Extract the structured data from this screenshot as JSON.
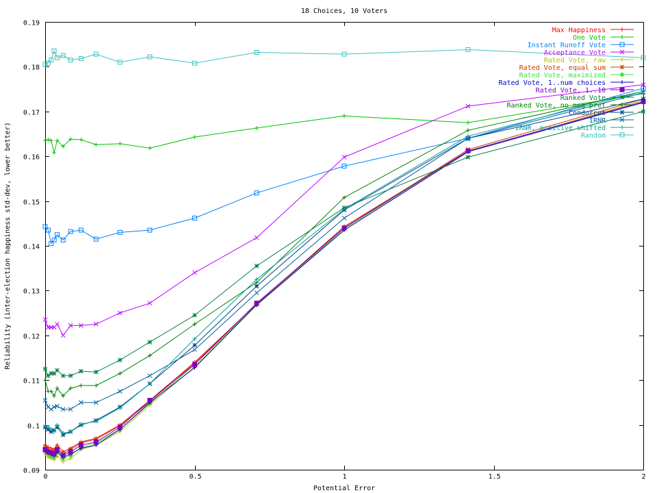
{
  "chart_data": {
    "type": "line",
    "title": "18 Choices, 10 Voters",
    "xlabel": "Potential Error",
    "ylabel": "Reliability (inter-election happiness std-dev, lower better)",
    "xlim": [
      0,
      2
    ],
    "ylim": [
      0.09,
      0.19
    ],
    "xticks": [
      "0",
      "0.5",
      "1",
      "1.5",
      "2"
    ],
    "yticks": [
      "0.09",
      "0.1",
      "0.11",
      "0.12",
      "0.13",
      "0.14",
      "0.15",
      "0.16",
      "0.17",
      "0.18",
      "0.19"
    ],
    "grid": false,
    "legend_position": "top-right",
    "x": [
      0,
      0.01,
      0.02,
      0.03,
      0.04,
      0.06,
      0.085,
      0.12,
      0.17,
      0.25,
      0.35,
      0.5,
      0.707,
      1,
      1.414,
      2
    ],
    "series": [
      {
        "name": "Max Happiness",
        "color": "#ff0000",
        "marker": "plus-dot",
        "values": [
          0.0955,
          0.095,
          0.0948,
          0.0945,
          0.0955,
          0.094,
          0.0948,
          0.0962,
          0.097,
          0.1,
          0.1055,
          0.114,
          0.127,
          0.1443,
          0.1612,
          0.172
        ]
      },
      {
        "name": "One Vote",
        "color": "#00c000",
        "marker": "plus",
        "values": [
          0.1635,
          0.1637,
          0.1635,
          0.1608,
          0.1635,
          0.1622,
          0.1638,
          0.1637,
          0.1626,
          0.1628,
          0.1618,
          0.1643,
          0.1663,
          0.169,
          0.1675,
          0.174
        ]
      },
      {
        "name": "Instant Runoff Vote",
        "color": "#0080ff",
        "marker": "square",
        "values": [
          0.1443,
          0.1435,
          0.1405,
          0.1413,
          0.1425,
          0.1413,
          0.1432,
          0.1435,
          0.1415,
          0.143,
          0.1435,
          0.1462,
          0.1518,
          0.1578,
          0.164,
          0.1752
        ]
      },
      {
        "name": "Acceptance Vote",
        "color": "#c000ff",
        "marker": "x",
        "values": [
          0.1235,
          0.1218,
          0.1218,
          0.1218,
          0.1225,
          0.12,
          0.1222,
          0.1222,
          0.1225,
          0.125,
          0.1272,
          0.134,
          0.1418,
          0.1598,
          0.1712,
          0.176
        ]
      },
      {
        "name": "Rated Vote, raw",
        "color": "#c0c000",
        "marker": "plus",
        "values": [
          0.0935,
          0.0928,
          0.0925,
          0.0922,
          0.093,
          0.0918,
          0.0925,
          0.0945,
          0.0955,
          0.0985,
          0.1045,
          0.113,
          0.1268,
          0.1435,
          0.161,
          0.1725
        ]
      },
      {
        "name": "Rated Vote, equal sum",
        "color": "#c04000",
        "marker": "star",
        "values": [
          0.095,
          0.0945,
          0.094,
          0.094,
          0.0948,
          0.0935,
          0.0945,
          0.096,
          0.0968,
          0.0998,
          0.1052,
          0.1138,
          0.127,
          0.144,
          0.1615,
          0.1728
        ]
      },
      {
        "name": "Rated Vote, maximized",
        "color": "#40e040",
        "marker": "diamond",
        "values": [
          0.094,
          0.0935,
          0.093,
          0.0928,
          0.0938,
          0.0925,
          0.0932,
          0.095,
          0.096,
          0.099,
          0.1048,
          0.1135,
          0.1268,
          0.1438,
          0.1612,
          0.172
        ]
      },
      {
        "name": "Rated Vote, 1..num choices",
        "color": "#0000c0",
        "marker": "plus",
        "values": [
          0.0942,
          0.0938,
          0.0935,
          0.0932,
          0.094,
          0.0928,
          0.0935,
          0.0948,
          0.0955,
          0.099,
          0.105,
          0.1128,
          0.1268,
          0.1435,
          0.161,
          0.172
        ]
      },
      {
        "name": "Rated Vote, 1..10",
        "color": "#8000c0",
        "marker": "square-filled",
        "values": [
          0.0945,
          0.094,
          0.0938,
          0.0935,
          0.0945,
          0.0932,
          0.094,
          0.0955,
          0.0962,
          0.0995,
          0.1055,
          0.1135,
          0.1272,
          0.144,
          0.1612,
          0.1722
        ]
      },
      {
        "name": "Ranked Vote",
        "color": "#008040",
        "marker": "star",
        "values": [
          0.1125,
          0.111,
          0.1115,
          0.1115,
          0.1122,
          0.111,
          0.111,
          0.112,
          0.1118,
          0.1145,
          0.1185,
          0.1245,
          0.1355,
          0.1485,
          0.1598,
          0.17
        ]
      },
      {
        "name": "Ranked Vote, no neg pref",
        "color": "#008000",
        "marker": "plus",
        "values": [
          0.11,
          0.1075,
          0.1075,
          0.1065,
          0.1082,
          0.1065,
          0.1082,
          0.1088,
          0.1088,
          0.1115,
          0.1155,
          0.1225,
          0.1318,
          0.1508,
          0.1658,
          0.1745
        ]
      },
      {
        "name": "Condorcet",
        "color": "#004080",
        "marker": "star",
        "values": [
          0.0995,
          0.099,
          0.0985,
          0.0988,
          0.0995,
          0.0978,
          0.0985,
          0.1,
          0.101,
          0.104,
          0.1092,
          0.1178,
          0.131,
          0.148,
          0.164,
          0.1728
        ]
      },
      {
        "name": "IRNR",
        "color": "#0060a0",
        "marker": "x",
        "values": [
          0.1055,
          0.104,
          0.1035,
          0.104,
          0.1042,
          0.1035,
          0.1035,
          0.105,
          0.105,
          0.1075,
          0.111,
          0.1168,
          0.1295,
          0.1462,
          0.164,
          0.1742
        ]
      },
      {
        "name": "IRNR, positive shifted",
        "color": "#00a0a0",
        "marker": "plus",
        "values": [
          0.0998,
          0.0995,
          0.099,
          0.0985,
          0.1,
          0.0982,
          0.0985,
          0.1002,
          0.1008,
          0.1038,
          0.1092,
          0.1192,
          0.1325,
          0.1482,
          0.1645,
          0.1745
        ]
      },
      {
        "name": "Random",
        "color": "#40c0c0",
        "marker": "square",
        "values": [
          0.1805,
          0.1808,
          0.1815,
          0.1835,
          0.182,
          0.1825,
          0.1815,
          0.1818,
          0.1828,
          0.181,
          0.1822,
          0.1808,
          0.1832,
          0.1828,
          0.1838,
          0.182
        ]
      }
    ]
  }
}
